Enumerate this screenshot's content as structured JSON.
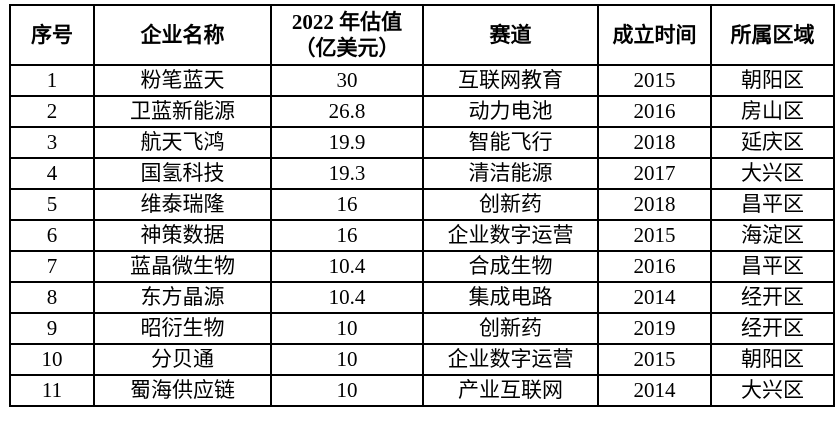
{
  "table": {
    "headers": [
      "序号",
      "企业名称",
      "2022 年估值\n（亿美元）",
      "赛道",
      "成立时间",
      "所属区域"
    ],
    "rows": [
      [
        "1",
        "粉笔蓝天",
        "30",
        "互联网教育",
        "2015",
        "朝阳区"
      ],
      [
        "2",
        "卫蓝新能源",
        "26.8",
        "动力电池",
        "2016",
        "房山区"
      ],
      [
        "3",
        "航天飞鸿",
        "19.9",
        "智能飞行",
        "2018",
        "延庆区"
      ],
      [
        "4",
        "国氢科技",
        "19.3",
        "清洁能源",
        "2017",
        "大兴区"
      ],
      [
        "5",
        "维泰瑞隆",
        "16",
        "创新药",
        "2018",
        "昌平区"
      ],
      [
        "6",
        "神策数据",
        "16",
        "企业数字运营",
        "2015",
        "海淀区"
      ],
      [
        "7",
        "蓝晶微生物",
        "10.4",
        "合成生物",
        "2016",
        "昌平区"
      ],
      [
        "8",
        "东方晶源",
        "10.4",
        "集成电路",
        "2014",
        "经开区"
      ],
      [
        "9",
        "昭衍生物",
        "10",
        "创新药",
        "2019",
        "经开区"
      ],
      [
        "10",
        "分贝通",
        "10",
        "企业数字运营",
        "2015",
        "朝阳区"
      ],
      [
        "11",
        "蜀海供应链",
        "10",
        "产业互联网",
        "2014",
        "大兴区"
      ]
    ],
    "column_names": [
      "index",
      "company-name",
      "valuation-2022",
      "track",
      "founded-year",
      "region"
    ]
  }
}
